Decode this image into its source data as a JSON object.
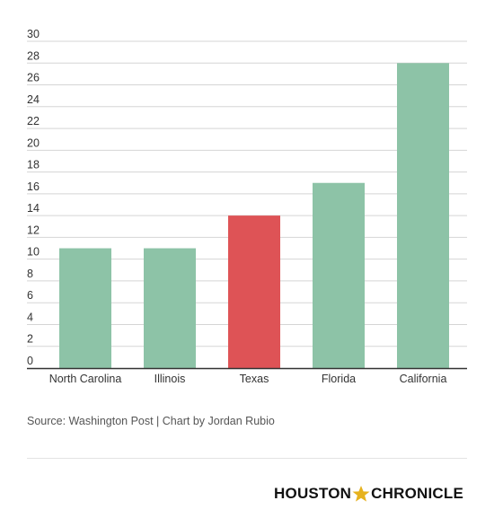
{
  "chart_data": {
    "type": "bar",
    "categories": [
      "North Carolina",
      "Illinois",
      "Texas",
      "Florida",
      "California"
    ],
    "values": [
      11,
      11,
      14,
      17,
      28
    ],
    "highlight_category": "Texas",
    "title": "",
    "xlabel": "",
    "ylabel": "",
    "ylim": [
      0,
      30
    ],
    "yticks": [
      0,
      2,
      4,
      6,
      8,
      10,
      12,
      14,
      16,
      18,
      20,
      22,
      24,
      26,
      28,
      30
    ],
    "grid": true,
    "legend": "none",
    "colors": {
      "default_bar": "#8dc3a7",
      "highlight_bar": "#de5356",
      "grid": "#d5d5d5",
      "axis": "#333333",
      "tick_label": "#333333"
    }
  },
  "footer": {
    "source": "Source: Washington Post | Chart by Jordan Rubio"
  },
  "logo": {
    "left_word": "HOUSTON",
    "right_word": "CHRONICLE",
    "icon": "star-icon",
    "star_color": "#e6b21e"
  }
}
